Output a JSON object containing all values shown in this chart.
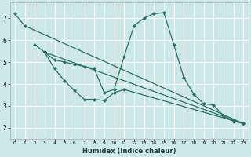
{
  "title": "",
  "xlabel": "Humidex (Indice chaleur)",
  "ylabel": "",
  "xlim": [
    -0.5,
    23.5
  ],
  "ylim": [
    1.5,
    7.7
  ],
  "xticks": [
    0,
    1,
    2,
    3,
    4,
    5,
    6,
    7,
    8,
    9,
    10,
    11,
    12,
    13,
    14,
    15,
    16,
    17,
    18,
    19,
    20,
    21,
    22,
    23
  ],
  "yticks": [
    2,
    3,
    4,
    5,
    6,
    7
  ],
  "bg_color": "#cce8e8",
  "grid_color": "#ffffff",
  "line_color": "#2a6e62",
  "line1_x": [
    0,
    1,
    23
  ],
  "line1_y": [
    7.2,
    6.65,
    2.2
  ],
  "line2_x": [
    2,
    3,
    4,
    5,
    6,
    7,
    8,
    9,
    10,
    11,
    23
  ],
  "line2_y": [
    5.8,
    5.45,
    4.7,
    4.15,
    3.7,
    3.3,
    3.3,
    3.25,
    3.6,
    3.75,
    2.2
  ],
  "line3_x": [
    3,
    23
  ],
  "line3_y": [
    5.45,
    2.2
  ],
  "line4_x": [
    3,
    4,
    5,
    6,
    7,
    8,
    9,
    10,
    11,
    12,
    13,
    14,
    15,
    16,
    17,
    18,
    19,
    20,
    21,
    22,
    23
  ],
  "line4_y": [
    5.45,
    5.1,
    5.0,
    4.9,
    4.8,
    4.7,
    3.6,
    3.75,
    5.25,
    6.65,
    7.0,
    7.2,
    7.25,
    5.8,
    4.3,
    3.55,
    3.1,
    3.05,
    2.55,
    2.3,
    2.2
  ]
}
